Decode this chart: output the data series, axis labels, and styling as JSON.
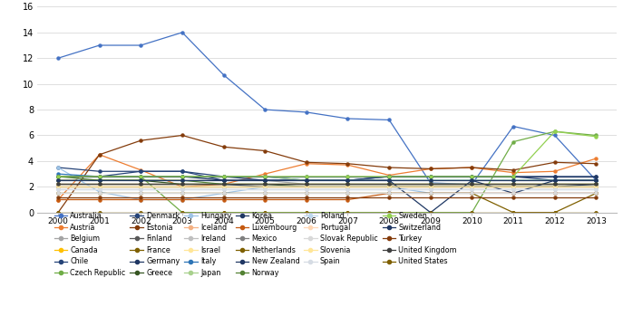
{
  "years": [
    2000,
    2001,
    2002,
    2003,
    2004,
    2005,
    2006,
    2007,
    2008,
    2009,
    2010,
    2011,
    2012,
    2013
  ],
  "series": {
    "Australia": [
      12.0,
      13.0,
      13.0,
      14.0,
      10.7,
      8.0,
      7.8,
      7.3,
      7.2,
      2.3,
      2.2,
      6.7,
      6.0,
      2.5
    ],
    "Austria": [
      1.0,
      4.5,
      3.3,
      2.0,
      2.2,
      3.0,
      3.8,
      3.7,
      2.9,
      3.4,
      3.5,
      3.1,
      3.2,
      4.2
    ],
    "Belgium": [
      2.5,
      2.5,
      2.5,
      2.5,
      2.5,
      2.5,
      2.2,
      2.2,
      2.2,
      2.2,
      2.2,
      2.2,
      2.2,
      2.2
    ],
    "Canada": [
      2.2,
      2.2,
      2.2,
      2.2,
      2.2,
      2.2,
      2.2,
      2.2,
      2.2,
      2.2,
      2.2,
      2.2,
      2.2,
      2.2
    ],
    "Chile": [
      3.5,
      3.2,
      3.2,
      3.2,
      2.5,
      2.5,
      2.5,
      2.5,
      2.8,
      2.8,
      2.8,
      2.8,
      2.8,
      2.8
    ],
    "Czech Republic": [
      2.8,
      2.8,
      2.8,
      0.0,
      0.0,
      0.0,
      0.0,
      0.0,
      0.0,
      0.0,
      0.0,
      5.5,
      6.3,
      6.0
    ],
    "Denmark": [
      2.8,
      2.8,
      3.2,
      3.2,
      2.8,
      2.5,
      2.5,
      2.5,
      2.8,
      2.8,
      2.8,
      2.8,
      2.5,
      2.5
    ],
    "Estonia": [
      0.0,
      4.5,
      5.6,
      6.0,
      5.1,
      4.8,
      3.9,
      3.8,
      3.5,
      3.4,
      3.5,
      3.3,
      3.9,
      3.8
    ],
    "Finland": [
      2.0,
      2.0,
      2.0,
      2.0,
      2.0,
      2.0,
      2.0,
      2.0,
      2.0,
      2.0,
      2.0,
      2.0,
      2.0,
      2.0
    ],
    "France": [
      0.0,
      0.0,
      0.0,
      0.0,
      0.0,
      0.0,
      0.0,
      0.0,
      0.0,
      0.0,
      0.0,
      0.0,
      0.0,
      0.0
    ],
    "Germany": [
      2.2,
      2.2,
      2.2,
      2.2,
      2.2,
      2.0,
      2.0,
      2.0,
      2.0,
      2.0,
      2.0,
      2.0,
      2.0,
      2.2
    ],
    "Greece": [
      2.5,
      2.5,
      2.5,
      2.2,
      2.2,
      2.2,
      2.0,
      2.0,
      2.0,
      2.0,
      2.0,
      2.0,
      2.0,
      2.0
    ],
    "Hungary": [
      3.5,
      1.6,
      1.0,
      1.0,
      1.5,
      2.0,
      2.0,
      2.0,
      2.0,
      1.5,
      1.5,
      1.5,
      1.5,
      1.5
    ],
    "Iceland": [
      2.0,
      2.0,
      2.0,
      2.0,
      2.0,
      2.0,
      2.0,
      2.0,
      2.0,
      2.0,
      2.0,
      2.0,
      2.0,
      2.0
    ],
    "Ireland": [
      2.0,
      2.0,
      2.0,
      2.0,
      2.0,
      2.0,
      2.0,
      2.0,
      2.0,
      2.0,
      2.0,
      2.0,
      2.0,
      2.0
    ],
    "Israel": [
      2.2,
      2.2,
      2.2,
      2.2,
      2.2,
      2.2,
      2.2,
      2.2,
      2.2,
      2.2,
      2.2,
      2.2,
      2.2,
      2.2
    ],
    "Italy": [
      3.0,
      2.8,
      2.8,
      2.8,
      2.8,
      2.8,
      2.5,
      2.5,
      2.5,
      2.5,
      2.5,
      2.5,
      2.5,
      2.5
    ],
    "Japan": [
      2.8,
      2.8,
      2.8,
      2.8,
      2.8,
      2.8,
      2.5,
      2.5,
      2.5,
      2.5,
      2.5,
      2.5,
      2.5,
      2.5
    ],
    "Korea": [
      2.8,
      2.8,
      2.8,
      2.8,
      2.5,
      2.5,
      2.5,
      2.5,
      2.5,
      0.0,
      2.5,
      1.5,
      2.5,
      2.5
    ],
    "Luxembourg": [
      1.0,
      1.0,
      1.0,
      1.0,
      1.0,
      1.0,
      1.0,
      1.0,
      1.5,
      1.5,
      1.5,
      1.5,
      1.5,
      1.5
    ],
    "Mexico": [
      2.0,
      2.0,
      2.0,
      2.0,
      2.0,
      2.0,
      2.0,
      2.0,
      2.0,
      2.0,
      2.0,
      2.0,
      2.0,
      2.0
    ],
    "Netherlands": [
      1.5,
      1.5,
      1.5,
      1.5,
      1.5,
      1.5,
      1.5,
      1.5,
      1.5,
      1.5,
      1.5,
      0.0,
      0.0,
      1.5
    ],
    "New Zealand": [
      2.8,
      2.8,
      2.8,
      2.8,
      2.8,
      2.8,
      2.8,
      2.8,
      2.8,
      2.8,
      2.8,
      2.8,
      2.8,
      2.8
    ],
    "Norway": [
      2.8,
      2.5,
      2.5,
      2.5,
      2.2,
      2.2,
      2.2,
      2.2,
      2.2,
      2.2,
      2.2,
      2.2,
      2.2,
      2.2
    ],
    "Poland": [
      1.8,
      1.8,
      1.8,
      1.8,
      1.8,
      1.8,
      1.8,
      1.8,
      1.8,
      1.8,
      1.8,
      1.8,
      1.8,
      1.8
    ],
    "Portugal": [
      2.0,
      2.0,
      2.0,
      2.0,
      2.0,
      2.0,
      2.0,
      2.0,
      2.0,
      2.0,
      2.0,
      2.0,
      2.0,
      2.0
    ],
    "Slovak Republic": [
      1.5,
      1.5,
      1.5,
      1.5,
      1.5,
      1.5,
      1.5,
      1.5,
      1.5,
      1.5,
      1.5,
      1.5,
      1.5,
      1.5
    ],
    "Slovenia": [
      2.0,
      2.0,
      2.0,
      2.0,
      2.0,
      2.0,
      2.0,
      2.0,
      2.0,
      2.0,
      2.0,
      2.0,
      2.0,
      2.0
    ],
    "Spain": [
      1.8,
      1.8,
      1.8,
      1.8,
      1.8,
      1.8,
      1.8,
      1.8,
      1.8,
      1.8,
      1.8,
      1.8,
      1.8,
      1.8
    ],
    "Sweden": [
      2.8,
      2.8,
      2.8,
      2.8,
      2.8,
      2.8,
      2.8,
      2.8,
      2.8,
      2.8,
      2.8,
      2.8,
      6.3,
      5.9
    ],
    "Switzerland": [
      2.5,
      2.5,
      2.5,
      2.5,
      2.5,
      2.5,
      2.5,
      2.5,
      2.5,
      2.5,
      2.5,
      2.5,
      2.5,
      2.5
    ],
    "Turkey": [
      1.2,
      1.2,
      1.2,
      1.2,
      1.2,
      1.2,
      1.2,
      1.2,
      1.2,
      1.2,
      1.2,
      1.2,
      1.2,
      1.2
    ],
    "United Kingdom": [
      2.2,
      2.2,
      2.2,
      2.2,
      2.2,
      2.2,
      2.2,
      2.2,
      2.2,
      2.2,
      2.2,
      2.2,
      2.2,
      2.2
    ],
    "United States": [
      0.0,
      0.0,
      0.0,
      0.0,
      0.0,
      0.0,
      0.0,
      0.0,
      0.0,
      0.0,
      0.0,
      0.0,
      0.0,
      0.0
    ]
  },
  "colors": {
    "Australia": "#4472C4",
    "Austria": "#ED7D31",
    "Belgium": "#A5A5A5",
    "Canada": "#FFC000",
    "Chile": "#264478",
    "Czech Republic": "#70AD47",
    "Denmark": "#264478",
    "Estonia": "#843C0C",
    "Finland": "#595959",
    "France": "#7F6000",
    "Germany": "#203864",
    "Greece": "#375623",
    "Hungary": "#9DC3E6",
    "Iceland": "#F4B183",
    "Ireland": "#C0C0C0",
    "Israel": "#FFE699",
    "Italy": "#2E75B6",
    "Japan": "#A9D18E",
    "Korea": "#1F3864",
    "Luxembourg": "#C55A11",
    "Mexico": "#808080",
    "Netherlands": "#7F6000",
    "New Zealand": "#203864",
    "Norway": "#548235",
    "Poland": "#BDD7EE",
    "Portugal": "#FFD7B5",
    "Slovak Republic": "#D9D9D9",
    "Slovenia": "#FFE699",
    "Spain": "#D6DCE4",
    "Sweden": "#92D050",
    "Switzerland": "#203864",
    "Turkey": "#843C0C",
    "United Kingdom": "#404040",
    "United States": "#7F6000"
  },
  "ylim": [
    0,
    16
  ],
  "yticks": [
    0,
    2,
    4,
    6,
    8,
    10,
    12,
    14,
    16
  ],
  "legend_order": [
    "Australia",
    "Austria",
    "Belgium",
    "Canada",
    "Chile",
    "Czech Republic",
    "Denmark",
    "Estonia",
    "Finland",
    "France",
    "Germany",
    "Greece",
    "Hungary",
    "Iceland",
    "Ireland",
    "Israel",
    "Italy",
    "Japan",
    "Korea",
    "Luxembourg",
    "Mexico",
    "Netherlands",
    "New Zealand",
    "Norway",
    "Poland",
    "Portugal",
    "Slovak Republic",
    "Slovenia",
    "Spain",
    "Sweden",
    "Switzerland",
    "Turkey",
    "United Kingdom",
    "United States"
  ],
  "fig_width": 6.87,
  "fig_height": 3.7,
  "dpi": 100
}
